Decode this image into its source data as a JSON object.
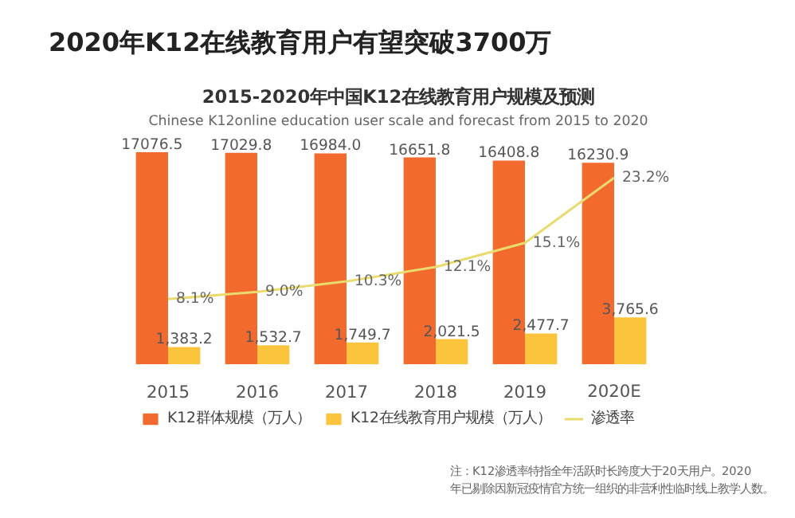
{
  "chart_data": {
    "type": "bar",
    "title": "2020年K12在线教育用户有望突破3700万",
    "subtitle": "2015-2020年中国K12在线教育用户规模及预测",
    "annotations": [
      "Chinese K12online education user scale and forecast from 2015 to 2020",
      "注：K12渗透率特指全年活跃时长跨度大于20天用户。2020年已剔除因新冠疫情官方统一组织的非营利性临时线上教学人数。"
    ],
    "categories": [
      "2015",
      "2016",
      "2017",
      "2018",
      "2019",
      "2020E"
    ],
    "series": [
      {
        "name": "K12群体规模（万人）",
        "color": "#f26a2e",
        "values": [
          17076.5,
          17029.8,
          16984.0,
          16651.8,
          16408.8,
          16230.9
        ],
        "value_labels": [
          "17076.5",
          "17029.8",
          "16984.0",
          "16651.8",
          "16408.8",
          "16230.9"
        ]
      },
      {
        "name": "K12在线教育用户规模（万人）",
        "color": "#fcc43c",
        "values": [
          1383.2,
          1532.7,
          1749.7,
          2021.5,
          2477.7,
          3765.6
        ],
        "value_labels": [
          "1,383.2",
          "1,532.7",
          "1,749.7",
          "2,021.5",
          "2,477.7",
          "3,765.6"
        ]
      },
      {
        "name": "渗透率",
        "type": "line",
        "axis": "y2",
        "color": "#eadb6e",
        "values": [
          8.1,
          9.0,
          10.3,
          12.1,
          15.1,
          23.2
        ],
        "value_labels": [
          "8.1%",
          "9.0%",
          "10.3%",
          "12.1%",
          "15.1%",
          "23.2%"
        ]
      }
    ],
    "data_labels": true,
    "grid": false,
    "legend": "bottom"
  }
}
